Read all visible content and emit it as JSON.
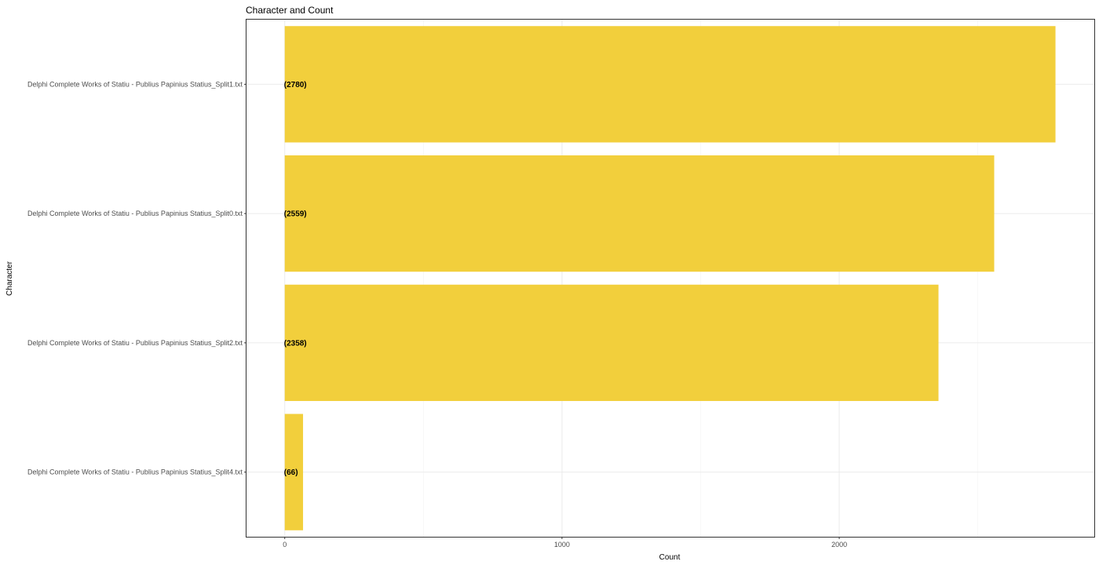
{
  "chart_data": {
    "type": "bar",
    "orientation": "horizontal",
    "title": "Character and Count",
    "xlabel": "Count",
    "ylabel": "Character",
    "categories": [
      "Delphi Complete Works of Statiu - Publius Papinius Statius_Split1.txt",
      "Delphi Complete Works of Statiu - Publius Papinius Statius_Split0.txt",
      "Delphi Complete Works of Statiu - Publius Papinius Statius_Split2.txt",
      "Delphi Complete Works of Statiu - Publius Papinius Statius_Split4.txt"
    ],
    "values": [
      2780,
      2559,
      2358,
      66
    ],
    "data_labels": [
      "(2780)",
      "(2559)",
      "(2358)",
      "(66)"
    ],
    "xlim": [
      -138,
      2920
    ],
    "xticks": [
      0,
      1000,
      2000
    ],
    "xtick_labels": [
      "0",
      "1000",
      "2000"
    ],
    "grid": true,
    "legend": "none",
    "colors": {
      "bar": "#f2cf3c",
      "panel_border": "#333333",
      "grid": "#ebebeb"
    }
  }
}
